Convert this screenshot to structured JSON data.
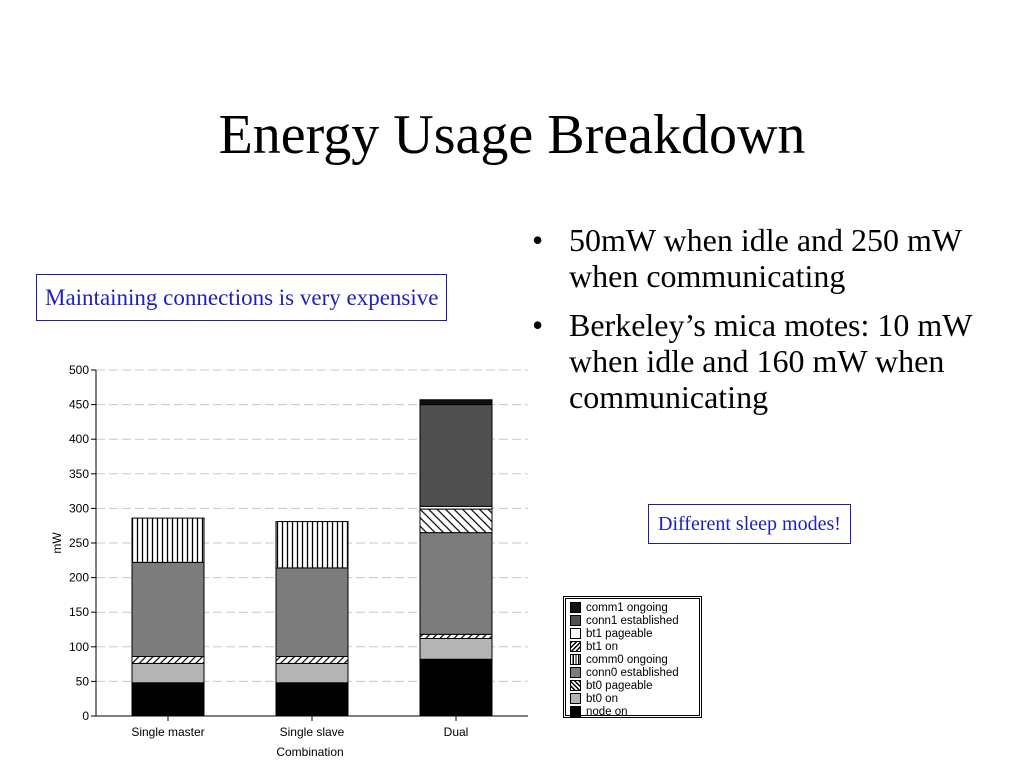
{
  "slide": {
    "title": "Energy Usage Breakdown",
    "callout_connections": "Maintaining connections is very expensive",
    "callout_sleep": "Different sleep modes!",
    "bullets": [
      {
        "marker": "•",
        "text": "50mW when idle and 250 mW when communicating"
      },
      {
        "marker": "•",
        "text": "Berkeley’s mica motes: 10 mW when idle and 160 mW when communicating"
      }
    ]
  },
  "chart_data": {
    "type": "bar",
    "stacked": true,
    "title": "",
    "xlabel": "Combination",
    "ylabel": "mW",
    "ylim": [
      0,
      500
    ],
    "yticks": [
      0,
      50,
      100,
      150,
      200,
      250,
      300,
      350,
      400,
      450,
      500
    ],
    "grid": true,
    "legend_position": "right",
    "categories": [
      "Single master",
      "Single slave",
      "Dual"
    ],
    "series": [
      {
        "name": "node on",
        "values": [
          48,
          48,
          82
        ],
        "fill": "#000000",
        "pattern": "solid"
      },
      {
        "name": "bt0 on",
        "values": [
          28,
          28,
          30
        ],
        "fill": "#b4b4b4",
        "pattern": "solid"
      },
      {
        "name": "bt0 pageable",
        "values": [
          10,
          10,
          6
        ],
        "fill": "#ffffff",
        "pattern": "diag-right"
      },
      {
        "name": "conn0 established",
        "values": [
          136,
          128,
          147
        ],
        "fill": "#7c7c7c",
        "pattern": "solid"
      },
      {
        "name": "comm0 ongoing",
        "values": [
          64,
          67,
          0
        ],
        "fill": "#ffffff",
        "pattern": "vertical"
      },
      {
        "name": "bt1 on",
        "values": [
          0,
          0,
          34
        ],
        "fill": "#ffffff",
        "pattern": "diag-left"
      },
      {
        "name": "bt1 pageable",
        "values": [
          0,
          0,
          4
        ],
        "fill": "#ffffff",
        "pattern": "solid"
      },
      {
        "name": "conn1 established",
        "values": [
          0,
          0,
          147
        ],
        "fill": "#505050",
        "pattern": "solid"
      },
      {
        "name": "comm1 ongoing",
        "values": [
          0,
          0,
          7
        ],
        "fill": "#111111",
        "pattern": "solid"
      }
    ]
  }
}
